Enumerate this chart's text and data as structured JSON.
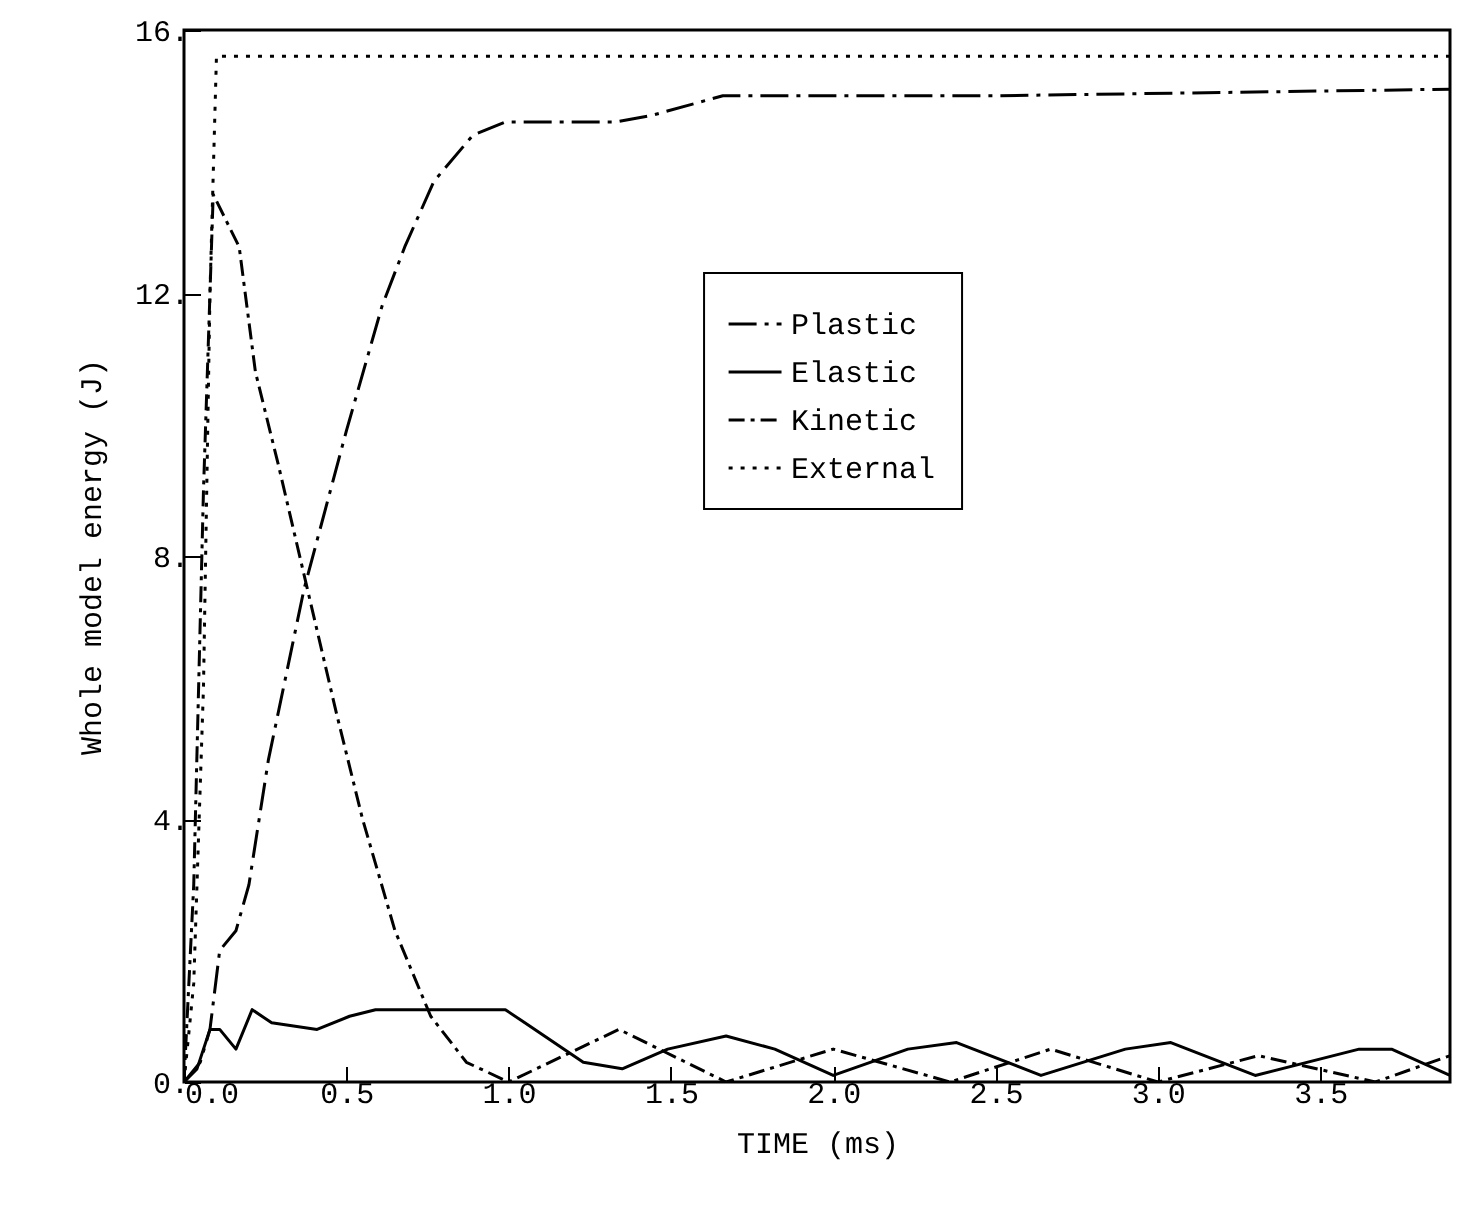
{
  "chart_data": {
    "type": "line",
    "xlabel": "TIME (ms)",
    "ylabel": "Whole model energy (J)",
    "xlim": [
      0,
      3.9
    ],
    "ylim": [
      0,
      16
    ],
    "xticks": [
      {
        "value": 0,
        "label": "0.0"
      },
      {
        "value": 0.5,
        "label": "0.5"
      },
      {
        "value": 1,
        "label": "1.0"
      },
      {
        "value": 1.5,
        "label": "1.5"
      },
      {
        "value": 2,
        "label": "2.0"
      },
      {
        "value": 2.5,
        "label": "2.5"
      },
      {
        "value": 3,
        "label": "3.0"
      },
      {
        "value": 3.5,
        "label": "3.5"
      }
    ],
    "yticks": [
      {
        "value": 0,
        "label": "0."
      },
      {
        "value": 4,
        "label": "4."
      },
      {
        "value": 8,
        "label": "8."
      },
      {
        "value": 12,
        "label": "12."
      },
      {
        "value": 16,
        "label": "16."
      }
    ],
    "grid": false,
    "legend": "top right",
    "series": [
      {
        "name": "Plastic",
        "color": "#000000",
        "line_style": "dashdot",
        "x": [
          0,
          0.05,
          0.08,
          0.11,
          0.16,
          0.2,
          0.26,
          0.37,
          0.5,
          0.61,
          0.68,
          0.77,
          0.89,
          0.99,
          1.33,
          1.44,
          1.66,
          2.5,
          3.9
        ],
        "values": [
          0,
          0.3,
          0.8,
          2.0,
          2.3,
          3.0,
          4.9,
          7.5,
          9.9,
          11.8,
          12.7,
          13.7,
          14.4,
          14.6,
          14.6,
          14.7,
          15.0,
          15.0,
          15.1
        ]
      },
      {
        "name": "Elastic",
        "color": "#000000",
        "line_style": "solid",
        "x": [
          0,
          0.04,
          0.08,
          0.11,
          0.16,
          0.21,
          0.27,
          0.41,
          0.51,
          0.59,
          0.87,
          0.99,
          1.05,
          1.23,
          1.35,
          1.49,
          1.67,
          1.82,
          2.0,
          2.23,
          2.38,
          2.64,
          2.9,
          3.04,
          3.3,
          3.62,
          3.72,
          3.9
        ],
        "values": [
          0,
          0.2,
          0.8,
          0.8,
          0.5,
          1.1,
          0.9,
          0.8,
          1.0,
          1.1,
          1.1,
          1.1,
          0.9,
          0.3,
          0.2,
          0.5,
          0.7,
          0.5,
          0.1,
          0.5,
          0.6,
          0.1,
          0.5,
          0.6,
          0.1,
          0.5,
          0.5,
          0.1
        ]
      },
      {
        "name": "Kinetic",
        "color": "#000000",
        "line_style": "dashdotdot",
        "x": [
          0,
          0.03,
          0.06,
          0.09,
          0.17,
          0.22,
          0.29,
          0.38,
          0.47,
          0.55,
          0.65,
          0.76,
          0.87,
          1.0,
          1.34,
          1.67,
          2.0,
          2.36,
          2.67,
          3.0,
          3.31,
          3.67,
          3.9
        ],
        "values": [
          0,
          3.0,
          9.0,
          13.5,
          12.7,
          10.8,
          9.4,
          7.5,
          5.6,
          4.0,
          2.3,
          1.0,
          0.3,
          0,
          0.8,
          0,
          0.5,
          0,
          0.5,
          0,
          0.4,
          0,
          0.4
        ]
      },
      {
        "name": "External",
        "color": "#000000",
        "line_style": "dotted",
        "x": [
          0,
          0.03,
          0.06,
          0.08,
          0.1,
          3.9
        ],
        "values": [
          0,
          1.5,
          6.0,
          12.0,
          15.6,
          15.6
        ]
      }
    ]
  }
}
